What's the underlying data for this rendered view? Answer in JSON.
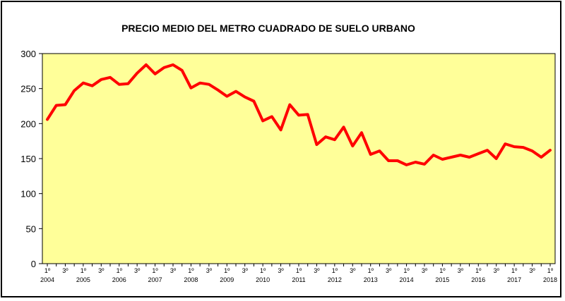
{
  "chart_data": {
    "type": "line",
    "title": "PRECIO MEDIO DEL METRO CUADRADO DE SUELO URBANO",
    "xlabel": "",
    "ylabel": "",
    "ylim": [
      0,
      300
    ],
    "yticks": [
      "0",
      "50",
      "100",
      "150",
      "200",
      "250",
      "300"
    ],
    "quarter_labels": [
      "1º",
      "3º"
    ],
    "year_labels": [
      "2004",
      "2005",
      "2006",
      "2007",
      "2008",
      "2009",
      "2010",
      "2011",
      "2012",
      "2013",
      "2014",
      "2015",
      "2016",
      "2017",
      "2018"
    ],
    "x": [
      "2004 1º",
      "2004 2º",
      "2004 3º",
      "2004 4º",
      "2005 1º",
      "2005 2º",
      "2005 3º",
      "2005 4º",
      "2006 1º",
      "2006 2º",
      "2006 3º",
      "2006 4º",
      "2007 1º",
      "2007 2º",
      "2007 3º",
      "2007 4º",
      "2008 1º",
      "2008 2º",
      "2008 3º",
      "2008 4º",
      "2009 1º",
      "2009 2º",
      "2009 3º",
      "2009 4º",
      "2010 1º",
      "2010 2º",
      "2010 3º",
      "2010 4º",
      "2011 1º",
      "2011 2º",
      "2011 3º",
      "2011 4º",
      "2012 1º",
      "2012 2º",
      "2012 3º",
      "2012 4º",
      "2013 1º",
      "2013 2º",
      "2013 3º",
      "2013 4º",
      "2014 1º",
      "2014 2º",
      "2014 3º",
      "2014 4º",
      "2015 1º",
      "2015 2º",
      "2015 3º",
      "2015 4º",
      "2016 1º",
      "2016 2º",
      "2016 3º",
      "2016 4º",
      "2017 1º",
      "2017 2º",
      "2017 3º",
      "2017 4º",
      "2018 1º"
    ],
    "series": [
      {
        "values": [
          206,
          226,
          227,
          247,
          258,
          254,
          263,
          266,
          256,
          257,
          272,
          284,
          271,
          280,
          284,
          276,
          251,
          258,
          256,
          248,
          239,
          246,
          238,
          232,
          204,
          210,
          191,
          227,
          212,
          213,
          170,
          181,
          177,
          195,
          168,
          187,
          156,
          161,
          147,
          147,
          141,
          145,
          142,
          155,
          149,
          152,
          155,
          152,
          157,
          162,
          150,
          171,
          167,
          166,
          161,
          152,
          162
        ]
      }
    ],
    "grid": false,
    "legend": "none",
    "colors": {
      "plot_bg": "#FFFF99",
      "line": "#FF0000",
      "axis": "#000000"
    }
  }
}
